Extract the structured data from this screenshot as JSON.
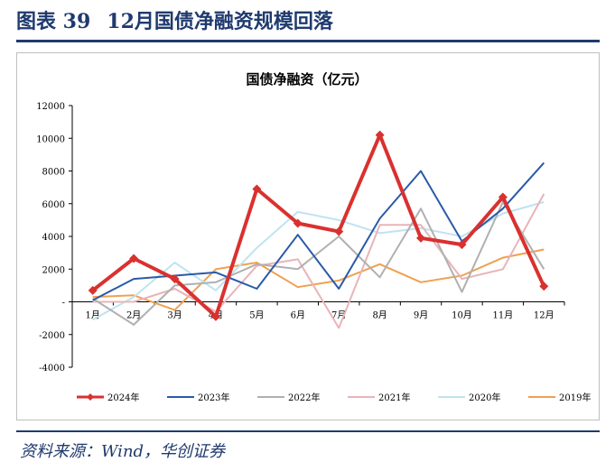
{
  "figure": {
    "label": "图表 39",
    "title": "12月国债净融资规模回落",
    "source": "资料来源：Wind，华创证券"
  },
  "chart_data": {
    "type": "line",
    "title": "国债净融资（亿元）",
    "xlabel": "",
    "ylabel": "",
    "categories": [
      "1月",
      "2月",
      "3月",
      "4月",
      "5月",
      "6月",
      "7月",
      "8月",
      "9月",
      "10月",
      "11月",
      "12月"
    ],
    "ylim": [
      -4000,
      12000
    ],
    "yticks": [
      "12000",
      "10000",
      "8000",
      "6000",
      "4000",
      "2000",
      "-",
      "-2000",
      "-4000"
    ],
    "ytick_values": [
      12000,
      10000,
      8000,
      6000,
      4000,
      2000,
      0,
      -2000,
      -4000
    ],
    "legend_position": "bottom",
    "grid": false,
    "series": [
      {
        "name": "2024年",
        "color": "#d9312f",
        "marker": "diamond",
        "width": 4,
        "values": [
          700,
          2650,
          1400,
          -900,
          6900,
          4800,
          4300,
          10200,
          3900,
          3500,
          6400,
          950
        ]
      },
      {
        "name": "2023年",
        "color": "#2a5aa8",
        "marker": "none",
        "width": 2,
        "values": [
          100,
          1400,
          1600,
          1800,
          800,
          4100,
          800,
          5100,
          8000,
          3700,
          5700,
          8500
        ]
      },
      {
        "name": "2022年",
        "color": "#b0b0b0",
        "marker": "none",
        "width": 2,
        "values": [
          200,
          -1400,
          1000,
          1200,
          2300,
          2000,
          4000,
          1500,
          5700,
          600,
          6100,
          2000
        ]
      },
      {
        "name": "2021年",
        "color": "#e8b4b8",
        "marker": "none",
        "width": 2,
        "values": [
          0,
          0,
          800,
          -600,
          2200,
          2600,
          -1600,
          4700,
          4700,
          1400,
          2000,
          6600
        ]
      },
      {
        "name": "2020年",
        "color": "#bfe3f0",
        "marker": "none",
        "width": 2,
        "values": [
          -1100,
          300,
          2400,
          700,
          3300,
          5500,
          5000,
          4200,
          4500,
          4000,
          5400,
          6100
        ]
      },
      {
        "name": "2019年",
        "color": "#f0a050",
        "marker": "none",
        "width": 2,
        "values": [
          300,
          400,
          -500,
          2000,
          2400,
          900,
          1300,
          2300,
          1200,
          1600,
          2700,
          3200
        ]
      }
    ]
  }
}
